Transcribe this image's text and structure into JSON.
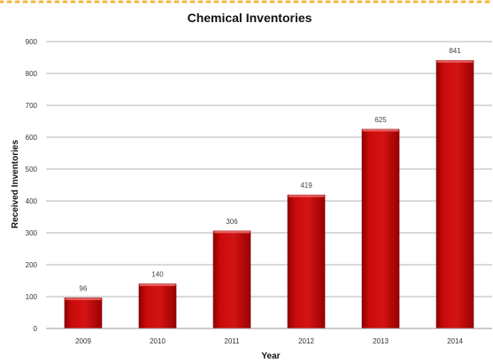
{
  "chart_data": {
    "type": "bar",
    "title": "Chemical Inventories",
    "xlabel": "Year",
    "ylabel": "Received Inventories",
    "categories": [
      "2009",
      "2010",
      "2011",
      "2012",
      "2013",
      "2014"
    ],
    "values": [
      96,
      140,
      306,
      419,
      625,
      841
    ],
    "data_labels": [
      "96",
      "140",
      "306",
      "419",
      "625",
      "841"
    ],
    "ylim": [
      0,
      900
    ],
    "yticks": [
      0,
      100,
      200,
      300,
      400,
      500,
      600,
      700,
      800,
      900
    ],
    "grid": true,
    "bar_color": "#c00000",
    "border_color": "#f4b63c"
  }
}
